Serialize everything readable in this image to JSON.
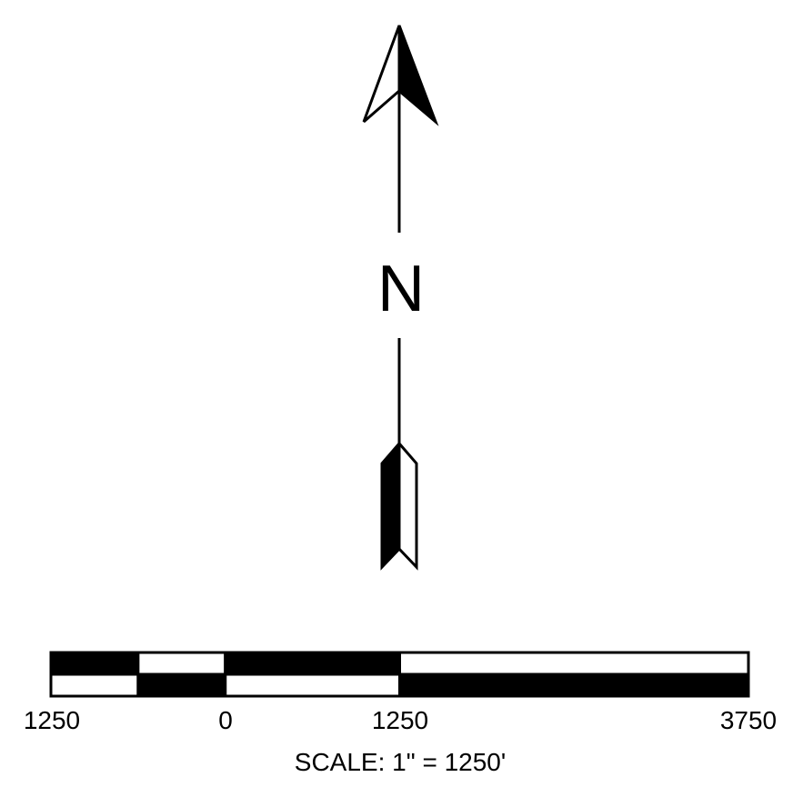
{
  "north_arrow": {
    "letter": "N"
  },
  "scale_bar": {
    "tick_labels": [
      "1250",
      "0",
      "1250",
      "3750"
    ],
    "caption": "SCALE: 1\" = 1250'",
    "segments_top": [
      {
        "from": -1250,
        "to": -625,
        "fill": "black"
      },
      {
        "from": -625,
        "to": 0,
        "fill": "white"
      },
      {
        "from": 0,
        "to": 1250,
        "fill": "black"
      },
      {
        "from": 1250,
        "to": 3750,
        "fill": "white"
      }
    ],
    "segments_bottom": [
      {
        "from": -1250,
        "to": -625,
        "fill": "white"
      },
      {
        "from": -625,
        "to": 0,
        "fill": "black"
      },
      {
        "from": 0,
        "to": 1250,
        "fill": "white"
      },
      {
        "from": 1250,
        "to": 3750,
        "fill": "black"
      }
    ]
  },
  "colors": {
    "ink": "#000000",
    "paper": "#ffffff"
  }
}
